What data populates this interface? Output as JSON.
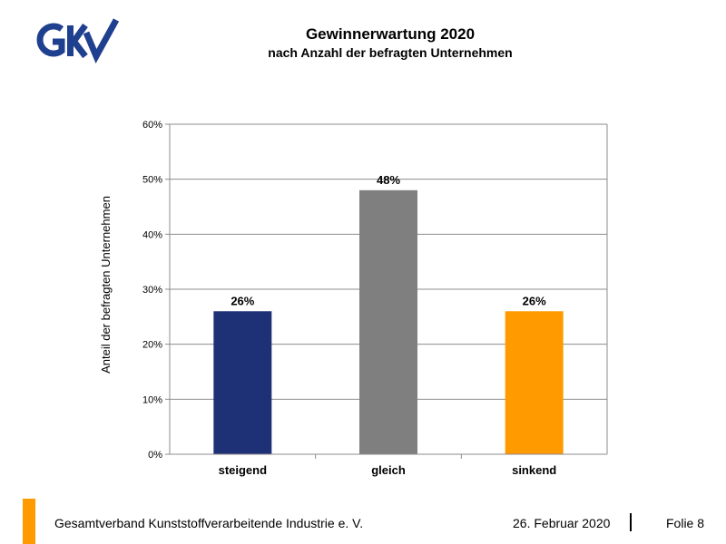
{
  "logo": {
    "text": "GKV",
    "color": "#1f3f8f"
  },
  "header": {
    "title": "Gewinnerwartung 2020",
    "subtitle": "nach Anzahl der befragten Unternehmen"
  },
  "chart_data": {
    "type": "bar",
    "title": "Gewinnerwartung 2020",
    "subtitle": "nach Anzahl der befragten Unternehmen",
    "xlabel": "",
    "ylabel": "Anteil der befragten Unternehmen",
    "categories": [
      "steigend",
      "gleich",
      "sinkend"
    ],
    "values": [
      26,
      48,
      26
    ],
    "value_labels": [
      "26%",
      "48%",
      "26%"
    ],
    "colors": [
      "#1f3176",
      "#7f7f7f",
      "#ff9a00"
    ],
    "ylim": [
      0,
      60
    ],
    "yticks": [
      0,
      10,
      20,
      30,
      40,
      50,
      60
    ],
    "ytick_labels": [
      "0%",
      "10%",
      "20%",
      "30%",
      "40%",
      "50%",
      "60%"
    ],
    "grid": true,
    "legend": "none"
  },
  "footer": {
    "organization": "Gesamtverband Kunststoffverarbeitende Industrie e. V.",
    "date": "26. Februar 2020",
    "page": "Folie  8",
    "accent_color": "#ff9a00"
  }
}
